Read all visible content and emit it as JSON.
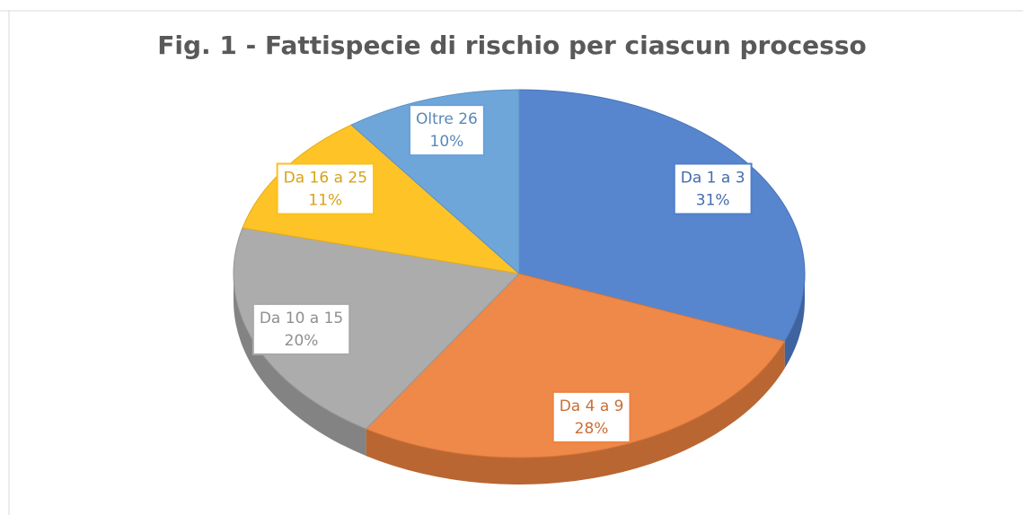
{
  "chart_data": {
    "type": "pie",
    "title": "Fig. 1 - Fattispecie di rischio per ciascun processo",
    "categories": [
      "Da 1 a 3",
      "Da 4 a 9",
      "Da 10 a 15",
      "Da 16 a 25",
      "Oltre 26"
    ],
    "values": [
      31,
      28,
      20,
      11,
      10
    ],
    "value_labels": [
      "31%",
      "28%",
      "20%",
      "11%",
      "10%"
    ],
    "colors": [
      "#4f7fcb",
      "#ed8340",
      "#a8a8a8",
      "#fdc01b",
      "#67a1d8"
    ]
  }
}
